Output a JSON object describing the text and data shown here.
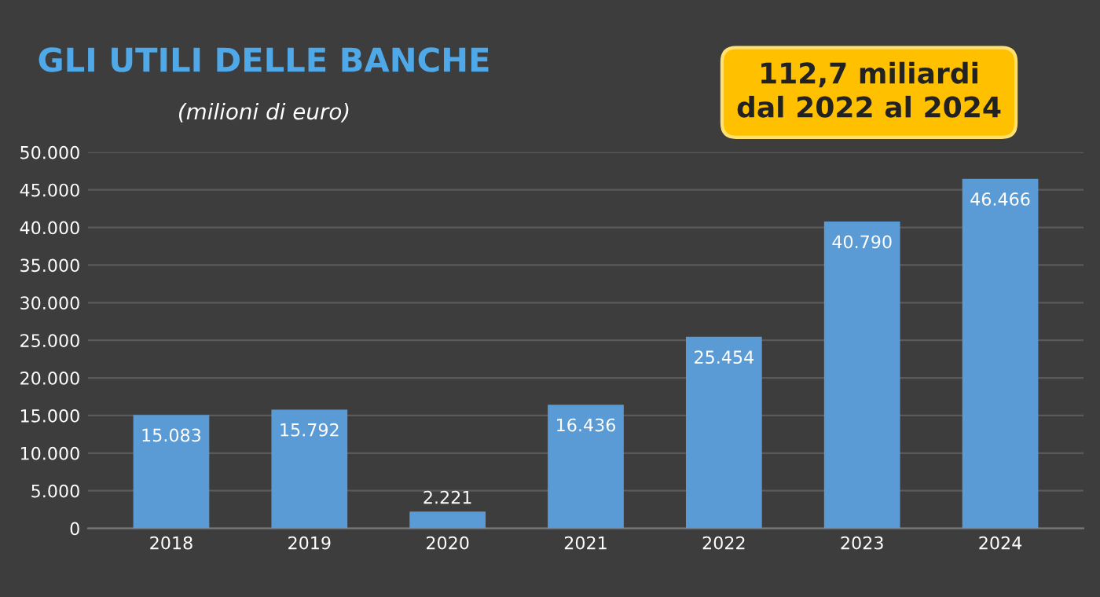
{
  "chart_data": {
    "type": "bar",
    "title": "GLI UTILI DELLE BANCHE",
    "subtitle": "(milioni di euro)",
    "annotations": [
      "112,7 miliardi\ndal 2022 al 2024"
    ],
    "categories": [
      "2018",
      "2019",
      "2020",
      "2021",
      "2022",
      "2023",
      "2024"
    ],
    "values": [
      15083,
      15792,
      2221,
      16436,
      25454,
      40790,
      46466
    ],
    "value_labels": [
      "15.083",
      "15.792",
      "2.221",
      "16.436",
      "25.454",
      "40.790",
      "46.466"
    ],
    "color": "#5b9bd5",
    "ylim": [
      0,
      50000
    ],
    "yticks": [
      {
        "value": 0,
        "label": "0"
      },
      {
        "value": 5000,
        "label": "5.000"
      },
      {
        "value": 10000,
        "label": "10.000"
      },
      {
        "value": 15000,
        "label": "15.000"
      },
      {
        "value": 20000,
        "label": "20.000"
      },
      {
        "value": 25000,
        "label": "25.000"
      },
      {
        "value": 30000,
        "label": "30.000"
      },
      {
        "value": 35000,
        "label": "35.000"
      },
      {
        "value": 40000,
        "label": "40.000"
      },
      {
        "value": 45000,
        "label": "45.000"
      },
      {
        "value": 50000,
        "label": "50.000"
      }
    ],
    "grid": "y"
  }
}
